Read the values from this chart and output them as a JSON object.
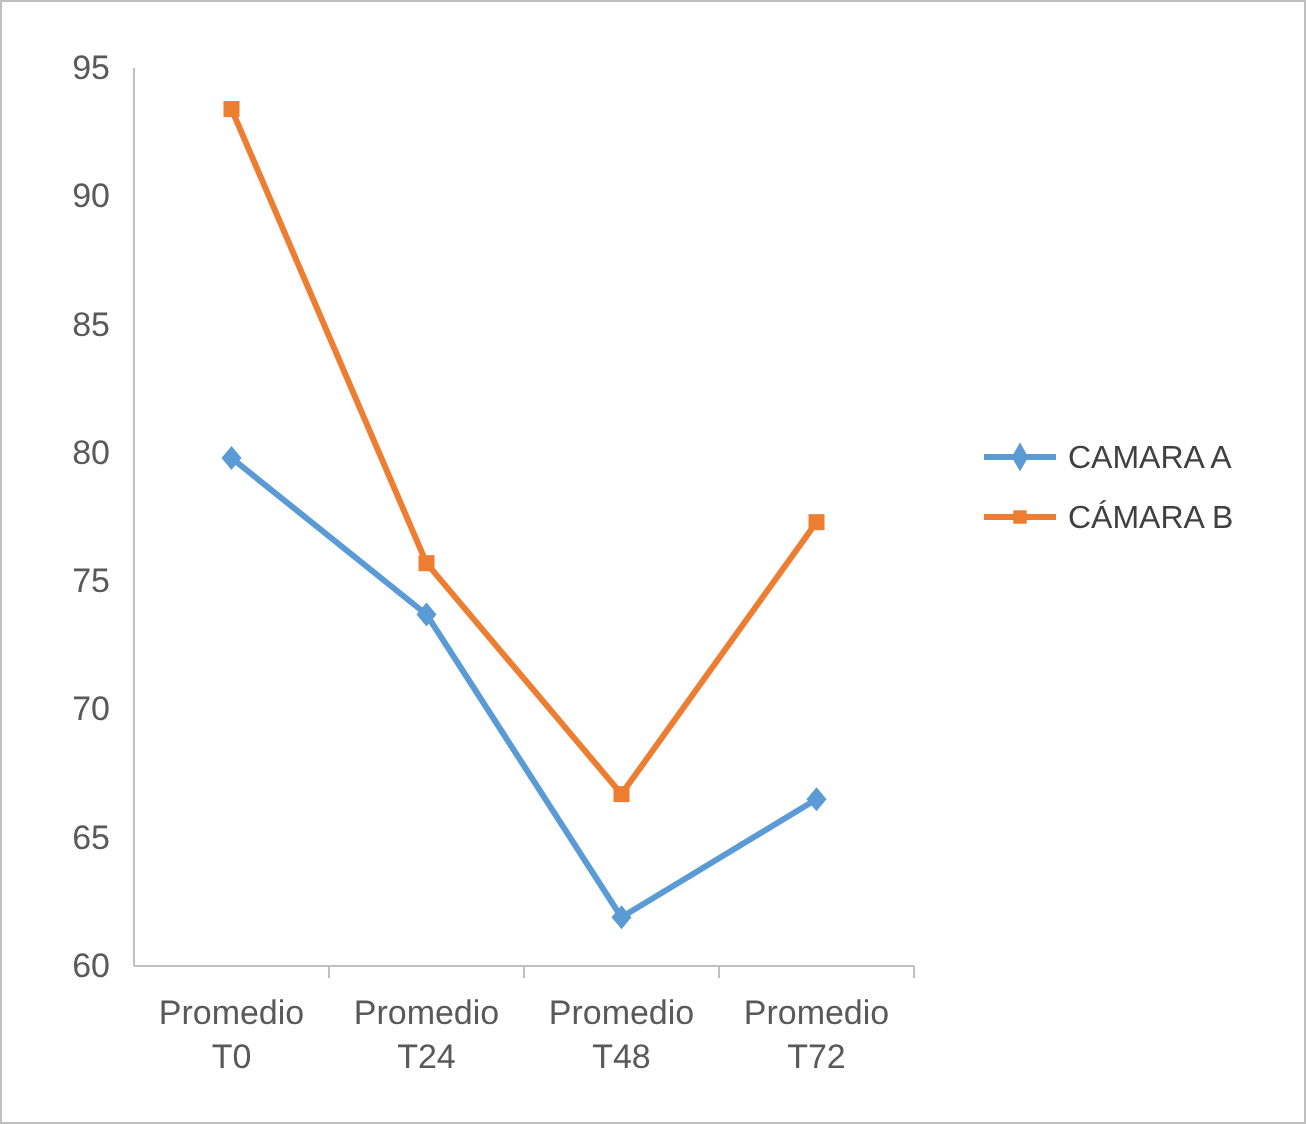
{
  "chart_data": {
    "type": "line",
    "categories": [
      "Promedio T0",
      "Promedio T24",
      "Promedio T48",
      "Promedio T72"
    ],
    "series": [
      {
        "name": "CAMARA A",
        "color": "#5b9bd5",
        "marker": "diamond",
        "values": [
          79.8,
          73.7,
          61.9,
          66.5
        ]
      },
      {
        "name": "CÁMARA B",
        "color": "#ed7d31",
        "marker": "square",
        "values": [
          93.4,
          75.7,
          66.7,
          77.3
        ]
      }
    ],
    "ylim": [
      60,
      95
    ],
    "yticks": [
      60,
      65,
      70,
      75,
      80,
      85,
      90,
      95
    ],
    "grid": false,
    "legend": "right"
  }
}
